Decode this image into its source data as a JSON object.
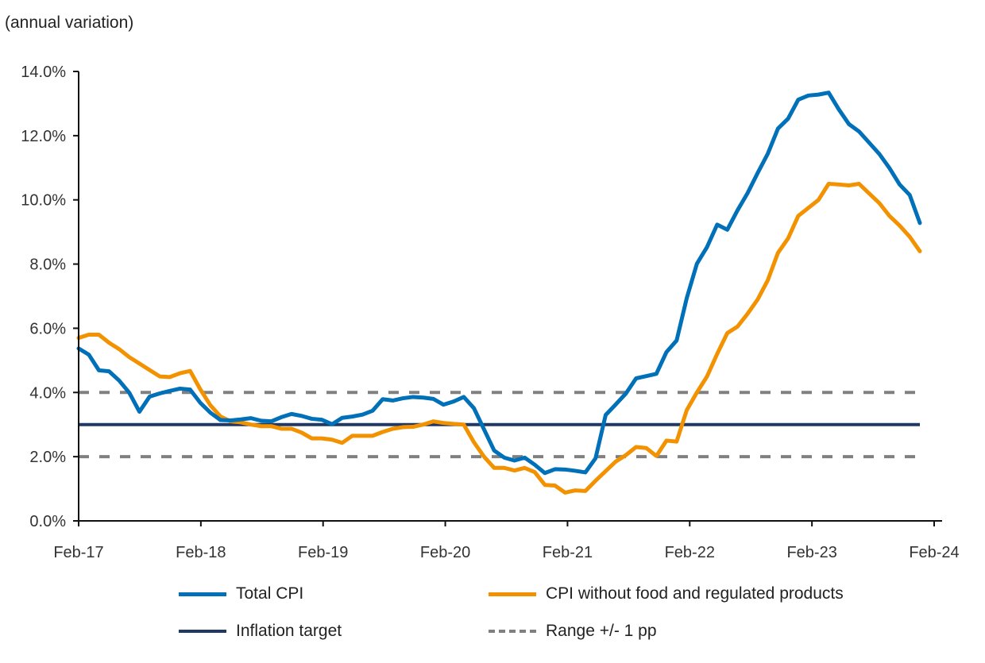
{
  "chart_data": {
    "type": "line",
    "unit_label": "(annual variation)",
    "x": [
      "Jan-17",
      "Feb-17",
      "Mar-17",
      "Apr-17",
      "May-17",
      "Jun-17",
      "Jul-17",
      "Aug-17",
      "Sep-17",
      "Oct-17",
      "Nov-17",
      "Dec-17",
      "Jan-18",
      "Feb-18",
      "Mar-18",
      "Apr-18",
      "May-18",
      "Jun-18",
      "Jul-18",
      "Aug-18",
      "Sep-18",
      "Oct-18",
      "Nov-18",
      "Dec-18",
      "Jan-19",
      "Feb-19",
      "Mar-19",
      "Apr-19",
      "May-19",
      "Jun-19",
      "Jul-19",
      "Aug-19",
      "Sep-19",
      "Oct-19",
      "Nov-19",
      "Dec-19",
      "Jan-20",
      "Feb-20",
      "Mar-20",
      "Apr-20",
      "May-20",
      "Jun-20",
      "Jul-20",
      "Aug-20",
      "Sep-20",
      "Oct-20",
      "Nov-20",
      "Dec-20",
      "Jan-21",
      "Feb-21",
      "Mar-21",
      "Apr-21",
      "May-21",
      "Jun-21",
      "Jul-21",
      "Aug-21",
      "Sep-21",
      "Oct-21",
      "Nov-21",
      "Dec-21",
      "Jan-22",
      "Feb-22",
      "Mar-22",
      "Apr-22",
      "May-22",
      "Jun-22",
      "Jul-22",
      "Aug-22",
      "Sep-22",
      "Oct-22",
      "Nov-22",
      "Dec-22",
      "Jan-23",
      "Feb-23",
      "Mar-23",
      "Apr-23",
      "May-23",
      "Jun-23",
      "Jul-23",
      "Aug-23",
      "Sep-23",
      "Oct-23",
      "Nov-23",
      "Dec-23"
    ],
    "x_tick_labels": [
      "Feb-17",
      "Feb-18",
      "Feb-19",
      "Feb-20",
      "Feb-21",
      "Feb-22",
      "Feb-23",
      "Feb-24"
    ],
    "y_tick_labels": [
      "0.0%",
      "2.0%",
      "4.0%",
      "6.0%",
      "8.0%",
      "10.0%",
      "12.0%",
      "14.0%"
    ],
    "ylim": [
      0,
      14
    ],
    "grid": false,
    "legend_position": "bottom",
    "series": [
      {
        "name": "Total CPI",
        "color": "#0070B8",
        "style": "solid",
        "values": [
          5.37,
          5.18,
          4.69,
          4.66,
          4.37,
          3.99,
          3.4,
          3.87,
          3.97,
          4.05,
          4.12,
          4.09,
          3.68,
          3.37,
          3.14,
          3.13,
          3.16,
          3.2,
          3.12,
          3.1,
          3.23,
          3.33,
          3.27,
          3.18,
          3.15,
          3.01,
          3.21,
          3.25,
          3.31,
          3.43,
          3.79,
          3.75,
          3.82,
          3.86,
          3.84,
          3.8,
          3.62,
          3.72,
          3.86,
          3.51,
          2.85,
          2.19,
          1.97,
          1.88,
          1.97,
          1.75,
          1.49,
          1.61,
          1.6,
          1.56,
          1.51,
          1.95,
          3.3,
          3.63,
          3.97,
          4.44,
          4.51,
          4.58,
          5.26,
          5.62,
          6.94,
          8.01,
          8.53,
          9.23,
          9.07,
          9.67,
          10.21,
          10.84,
          11.44,
          12.22,
          12.53,
          13.12,
          13.25,
          13.28,
          13.34,
          12.82,
          12.36,
          12.13,
          11.78,
          11.43,
          10.99,
          10.48,
          10.15,
          9.28
        ]
      },
      {
        "name": "CPI without food and regulated products",
        "color": "#F39200",
        "style": "solid",
        "values": [
          5.7,
          5.8,
          5.8,
          5.55,
          5.35,
          5.1,
          4.9,
          4.7,
          4.5,
          4.48,
          4.6,
          4.67,
          4.1,
          3.6,
          3.25,
          3.1,
          3.07,
          3.0,
          2.95,
          2.95,
          2.87,
          2.87,
          2.75,
          2.57,
          2.57,
          2.53,
          2.43,
          2.65,
          2.65,
          2.65,
          2.77,
          2.87,
          2.92,
          2.93,
          3.0,
          3.1,
          3.05,
          3.02,
          3.0,
          2.45,
          2.0,
          1.65,
          1.65,
          1.57,
          1.65,
          1.52,
          1.12,
          1.1,
          0.88,
          0.95,
          0.93,
          1.25,
          1.55,
          1.85,
          2.05,
          2.3,
          2.27,
          2.02,
          2.5,
          2.47,
          3.45,
          4.0,
          4.5,
          5.2,
          5.85,
          6.05,
          6.45,
          6.9,
          7.5,
          8.35,
          8.8,
          9.5,
          9.75,
          10.0,
          10.5,
          10.48,
          10.45,
          10.5,
          10.2,
          9.9,
          9.5,
          9.2,
          8.85,
          8.4
        ]
      },
      {
        "name": "Inflation target",
        "color": "#1F3864",
        "style": "solid",
        "value": 3
      },
      {
        "name": "Range +/- 1 pp",
        "color": "#808080",
        "style": "dashed",
        "values_band": [
          2,
          4
        ]
      }
    ]
  }
}
